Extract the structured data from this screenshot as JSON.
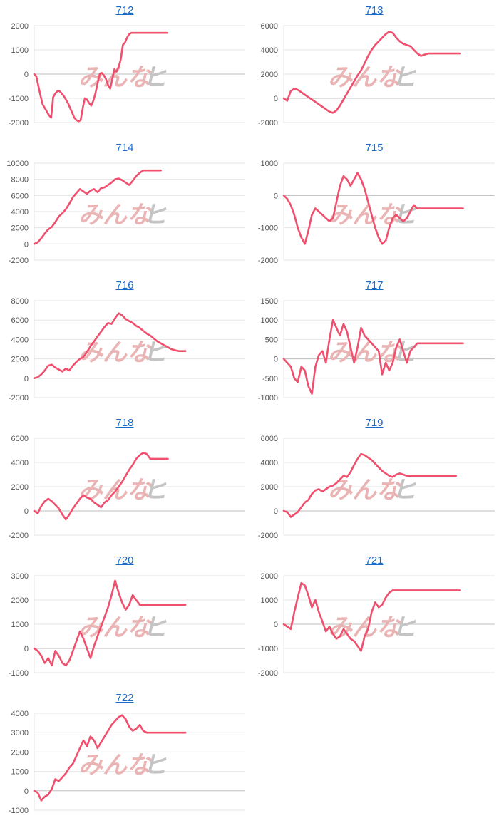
{
  "watermark": {
    "left": "みんな",
    "right": "ヒ"
  },
  "colors": {
    "series": "#f0506e",
    "title_link": "#1a6ac8",
    "grid": "#e6e6e6"
  },
  "chart_data": [
    {
      "type": "line",
      "title": "712",
      "ylim": [
        -2000,
        2000
      ],
      "yticks": [
        2000,
        1000,
        0,
        -1000,
        -2000
      ],
      "grid": true,
      "x": [
        0,
        3,
        6,
        9,
        12,
        15,
        18,
        21,
        24,
        27,
        30,
        33,
        36,
        39,
        42,
        45,
        48,
        51,
        54,
        57,
        60,
        63,
        66,
        69,
        72,
        75,
        78,
        81,
        84,
        87,
        90,
        93,
        96,
        99,
        102,
        105,
        108,
        111,
        114,
        117,
        120,
        123,
        126,
        129,
        132,
        135,
        138,
        141,
        144,
        147,
        150,
        153,
        156,
        159,
        162,
        165,
        168,
        171,
        174,
        177,
        180,
        183,
        186,
        189
      ],
      "y": [
        0,
        -100,
        -500,
        -900,
        -1250,
        -1400,
        -1550,
        -1700,
        -1800,
        -950,
        -800,
        -700,
        -700,
        -800,
        -900,
        -1050,
        -1200,
        -1400,
        -1600,
        -1800,
        -1900,
        -1950,
        -1900,
        -1400,
        -1000,
        -1050,
        -1200,
        -1300,
        -1100,
        -800,
        -400,
        0,
        50,
        -50,
        -200,
        -450,
        -600,
        -200,
        200,
        100,
        300,
        600,
        1200,
        1300,
        1500,
        1650,
        1700,
        1700,
        1700,
        1700,
        1700,
        1700,
        1700,
        1700,
        1700,
        1700,
        1700,
        1700,
        1700,
        1700,
        1700,
        1700,
        1700,
        1700
      ]
    },
    {
      "type": "line",
      "title": "713",
      "ylim": [
        -2000,
        6000
      ],
      "yticks": [
        6000,
        4000,
        2000,
        0,
        -2000
      ],
      "grid": true,
      "x": [
        0,
        5,
        10,
        15,
        20,
        25,
        30,
        35,
        40,
        45,
        50,
        55,
        60,
        65,
        70,
        75,
        80,
        85,
        90,
        95,
        100,
        105,
        110,
        115,
        120,
        125,
        130,
        135,
        140,
        145,
        150,
        155,
        160,
        165,
        170,
        175,
        180,
        185,
        190,
        195,
        200,
        205,
        210,
        215,
        220,
        225,
        230,
        235,
        240,
        245,
        250
      ],
      "y": [
        0,
        -200,
        600,
        800,
        700,
        500,
        300,
        100,
        -100,
        -300,
        -500,
        -700,
        -900,
        -1100,
        -1200,
        -1000,
        -600,
        -100,
        400,
        900,
        1400,
        1900,
        2300,
        2900,
        3500,
        4000,
        4400,
        4700,
        5000,
        5300,
        5500,
        5400,
        5000,
        4700,
        4500,
        4400,
        4300,
        4000,
        3700,
        3500,
        3600,
        3700,
        3700,
        3700,
        3700,
        3700,
        3700,
        3700,
        3700,
        3700,
        3700
      ]
    },
    {
      "type": "line",
      "title": "714",
      "ylim": [
        -2000,
        10000
      ],
      "yticks": [
        10000,
        8000,
        6000,
        4000,
        2000,
        0,
        -2000
      ],
      "grid": true,
      "x": [
        0,
        5,
        10,
        15,
        20,
        25,
        30,
        35,
        40,
        45,
        50,
        55,
        60,
        65,
        70,
        75,
        80,
        85,
        90,
        95,
        100,
        105,
        110,
        115,
        120,
        125,
        130,
        135,
        140,
        145,
        150,
        155,
        160,
        165,
        170,
        175,
        180
      ],
      "y": [
        0,
        200,
        700,
        1300,
        1800,
        2100,
        2700,
        3400,
        3800,
        4300,
        5000,
        5800,
        6300,
        6800,
        6500,
        6200,
        6600,
        6800,
        6400,
        6900,
        7000,
        7300,
        7600,
        8000,
        8100,
        7900,
        7600,
        7300,
        7800,
        8400,
        8800,
        9100,
        9100,
        9100,
        9100,
        9100,
        9100
      ]
    },
    {
      "type": "line",
      "title": "715",
      "ylim": [
        -2000,
        1000
      ],
      "yticks": [
        1000,
        0,
        -1000,
        -2000
      ],
      "grid": true,
      "x": [
        0,
        5,
        10,
        15,
        20,
        25,
        30,
        35,
        40,
        45,
        50,
        55,
        60,
        65,
        70,
        75,
        80,
        85,
        90,
        95,
        100,
        105,
        110,
        115,
        120,
        125,
        130,
        135,
        140,
        145,
        150,
        155,
        160,
        165,
        170,
        175,
        180,
        185,
        190,
        195,
        200,
        205,
        210,
        215,
        220,
        225,
        230,
        235,
        240,
        245,
        250,
        255
      ],
      "y": [
        0,
        -100,
        -300,
        -600,
        -1000,
        -1300,
        -1500,
        -1100,
        -600,
        -400,
        -500,
        -600,
        -700,
        -800,
        -700,
        -200,
        300,
        600,
        500,
        300,
        500,
        700,
        500,
        200,
        -200,
        -600,
        -1000,
        -1300,
        -1500,
        -1400,
        -1000,
        -700,
        -600,
        -700,
        -800,
        -700,
        -500,
        -300,
        -400,
        -400,
        -400,
        -400,
        -400,
        -400,
        -400,
        -400,
        -400,
        -400,
        -400,
        -400,
        -400,
        -400
      ]
    },
    {
      "type": "line",
      "title": "716",
      "ylim": [
        -2000,
        8000
      ],
      "yticks": [
        8000,
        6000,
        4000,
        2000,
        0,
        -2000
      ],
      "grid": true,
      "x": [
        0,
        5,
        10,
        15,
        20,
        25,
        30,
        35,
        40,
        45,
        50,
        55,
        60,
        65,
        70,
        75,
        80,
        85,
        90,
        95,
        100,
        105,
        110,
        115,
        120,
        125,
        130,
        135,
        140,
        145,
        150,
        155,
        160,
        165,
        170,
        175,
        180,
        185,
        190,
        195,
        200,
        205,
        210,
        215
      ],
      "y": [
        0,
        100,
        400,
        800,
        1300,
        1400,
        1100,
        900,
        700,
        1000,
        800,
        1300,
        1700,
        2000,
        2200,
        2700,
        3300,
        3800,
        4300,
        4800,
        5300,
        5700,
        5600,
        6200,
        6700,
        6500,
        6100,
        5900,
        5700,
        5400,
        5200,
        4900,
        4600,
        4400,
        4100,
        3800,
        3600,
        3400,
        3200,
        3000,
        2900,
        2800,
        2800,
        2800
      ]
    },
    {
      "type": "line",
      "title": "717",
      "ylim": [
        -1000,
        1500
      ],
      "yticks": [
        1500,
        1000,
        500,
        0,
        -500,
        -1000
      ],
      "grid": true,
      "x": [
        0,
        5,
        10,
        15,
        20,
        25,
        30,
        35,
        40,
        45,
        50,
        55,
        60,
        65,
        70,
        75,
        80,
        85,
        90,
        95,
        100,
        105,
        110,
        115,
        120,
        125,
        130,
        135,
        140,
        145,
        150,
        155,
        160,
        165,
        170,
        175,
        180,
        185,
        190,
        195,
        200,
        205,
        210,
        215,
        220,
        225,
        230,
        235,
        240,
        245,
        250,
        255
      ],
      "y": [
        0,
        -100,
        -200,
        -500,
        -600,
        -200,
        -300,
        -700,
        -900,
        -200,
        100,
        200,
        -100,
        500,
        1000,
        800,
        600,
        900,
        700,
        300,
        -100,
        300,
        800,
        600,
        500,
        400,
        300,
        200,
        -400,
        -100,
        -300,
        -100,
        300,
        500,
        200,
        -100,
        200,
        300,
        400,
        400,
        400,
        400,
        400,
        400,
        400,
        400,
        400,
        400,
        400,
        400,
        400,
        400
      ]
    },
    {
      "type": "line",
      "title": "718",
      "ylim": [
        -2000,
        6000
      ],
      "yticks": [
        6000,
        4000,
        2000,
        0,
        -2000
      ],
      "grid": true,
      "x": [
        0,
        5,
        10,
        15,
        20,
        25,
        30,
        35,
        40,
        45,
        50,
        55,
        60,
        65,
        70,
        75,
        80,
        85,
        90,
        95,
        100,
        105,
        110,
        115,
        120,
        125,
        130,
        135,
        140,
        145,
        150,
        155,
        160,
        165,
        170,
        175,
        180,
        185,
        190
      ],
      "y": [
        0,
        -200,
        400,
        800,
        1000,
        800,
        500,
        200,
        -300,
        -700,
        -300,
        200,
        600,
        1000,
        1300,
        1100,
        1000,
        700,
        500,
        300,
        700,
        900,
        1300,
        1600,
        2000,
        2400,
        2900,
        3400,
        3800,
        4300,
        4600,
        4800,
        4700,
        4300,
        4300,
        4300,
        4300,
        4300,
        4300
      ]
    },
    {
      "type": "line",
      "title": "719",
      "ylim": [
        -2000,
        6000
      ],
      "yticks": [
        6000,
        4000,
        2000,
        0,
        -2000
      ],
      "grid": true,
      "x": [
        0,
        5,
        10,
        15,
        20,
        25,
        30,
        35,
        40,
        45,
        50,
        55,
        60,
        65,
        70,
        75,
        80,
        85,
        90,
        95,
        100,
        105,
        110,
        115,
        120,
        125,
        130,
        135,
        140,
        145,
        150,
        155,
        160,
        165,
        170,
        175,
        180,
        185,
        190,
        195,
        200,
        205,
        210,
        215,
        220,
        225,
        230,
        235,
        240,
        245
      ],
      "y": [
        0,
        -100,
        -500,
        -300,
        -100,
        300,
        700,
        900,
        1400,
        1700,
        1800,
        1600,
        1800,
        2000,
        2100,
        2300,
        2600,
        2900,
        2800,
        3200,
        3800,
        4300,
        4700,
        4600,
        4400,
        4200,
        3900,
        3600,
        3300,
        3100,
        2900,
        2800,
        3000,
        3100,
        3000,
        2900,
        2900,
        2900,
        2900,
        2900,
        2900,
        2900,
        2900,
        2900,
        2900,
        2900,
        2900,
        2900,
        2900,
        2900
      ]
    },
    {
      "type": "line",
      "title": "720",
      "ylim": [
        -1000,
        3000
      ],
      "yticks": [
        3000,
        2000,
        1000,
        0,
        -1000
      ],
      "grid": true,
      "x": [
        0,
        5,
        10,
        15,
        20,
        25,
        30,
        35,
        40,
        45,
        50,
        55,
        60,
        65,
        70,
        75,
        80,
        85,
        90,
        95,
        100,
        105,
        110,
        115,
        120,
        125,
        130,
        135,
        140,
        145,
        150,
        155,
        160,
        165,
        170,
        175,
        180,
        185,
        190,
        195,
        200,
        205,
        210,
        215
      ],
      "y": [
        0,
        -100,
        -300,
        -600,
        -400,
        -700,
        -100,
        -300,
        -600,
        -700,
        -500,
        -100,
        300,
        700,
        400,
        0,
        -400,
        100,
        500,
        900,
        1300,
        1700,
        2200,
        2800,
        2300,
        1900,
        1600,
        1800,
        2200,
        2000,
        1800,
        1800,
        1800,
        1800,
        1800,
        1800,
        1800,
        1800,
        1800,
        1800,
        1800,
        1800,
        1800,
        1800
      ]
    },
    {
      "type": "line",
      "title": "721",
      "ylim": [
        -2000,
        2000
      ],
      "yticks": [
        2000,
        1000,
        0,
        -1000,
        -2000
      ],
      "grid": true,
      "x": [
        0,
        5,
        10,
        15,
        20,
        25,
        30,
        35,
        40,
        45,
        50,
        55,
        60,
        65,
        70,
        75,
        80,
        85,
        90,
        95,
        100,
        105,
        110,
        115,
        120,
        125,
        130,
        135,
        140,
        145,
        150,
        155,
        160,
        165,
        170,
        175,
        180,
        185,
        190,
        195,
        200,
        205,
        210,
        215,
        220,
        225,
        230,
        235,
        240,
        245,
        250
      ],
      "y": [
        0,
        -100,
        -200,
        500,
        1100,
        1700,
        1600,
        1200,
        700,
        1000,
        500,
        100,
        -300,
        -100,
        -400,
        -600,
        -500,
        -200,
        -400,
        -600,
        -700,
        -900,
        -1100,
        -500,
        -200,
        500,
        900,
        700,
        800,
        1100,
        1300,
        1400,
        1400,
        1400,
        1400,
        1400,
        1400,
        1400,
        1400,
        1400,
        1400,
        1400,
        1400,
        1400,
        1400,
        1400,
        1400,
        1400,
        1400,
        1400,
        1400
      ]
    },
    {
      "type": "line",
      "title": "722",
      "ylim": [
        -1000,
        4000
      ],
      "yticks": [
        4000,
        3000,
        2000,
        1000,
        0,
        -1000
      ],
      "grid": true,
      "x": [
        0,
        5,
        10,
        15,
        20,
        25,
        30,
        35,
        40,
        45,
        50,
        55,
        60,
        65,
        70,
        75,
        80,
        85,
        90,
        95,
        100,
        105,
        110,
        115,
        120,
        125,
        130,
        135,
        140,
        145,
        150,
        155,
        160,
        165,
        170,
        175,
        180,
        185,
        190,
        195,
        200,
        205,
        210,
        215
      ],
      "y": [
        0,
        -100,
        -500,
        -300,
        -200,
        100,
        600,
        500,
        700,
        900,
        1200,
        1400,
        1800,
        2200,
        2600,
        2300,
        2800,
        2600,
        2200,
        2500,
        2800,
        3100,
        3400,
        3600,
        3800,
        3900,
        3700,
        3300,
        3100,
        3200,
        3400,
        3100,
        3000,
        3000,
        3000,
        3000,
        3000,
        3000,
        3000,
        3000,
        3000,
        3000,
        3000,
        3000
      ]
    }
  ]
}
